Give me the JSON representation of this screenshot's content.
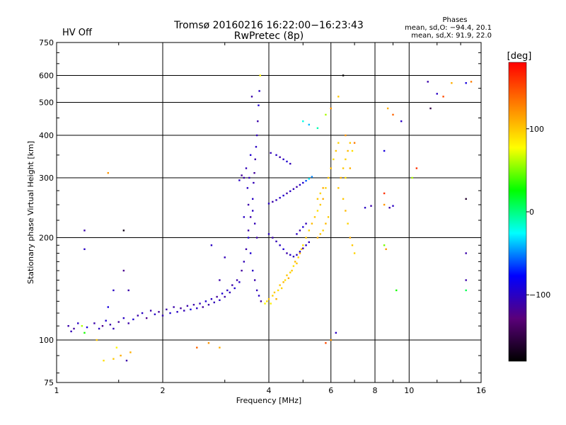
{
  "status": {
    "text": "HV Off",
    "color": "#cc0000"
  },
  "phases": {
    "heading": "Phases",
    "o_mode": "mean, sd,O: −94.4, 20.1",
    "x_mode": "mean, sd,X:  91.9, 22.0"
  },
  "colorbar": {
    "unit": "[deg]",
    "range": [
      -180,
      180
    ],
    "ticks": [
      {
        "value": 100,
        "label": "100"
      },
      {
        "value": 0,
        "label": "0"
      },
      {
        "value": -100,
        "label": "−100"
      }
    ],
    "stops": [
      "#000000",
      "#5a007a",
      "#0000ff",
      "#00ffff",
      "#00ff00",
      "#ffff00",
      "#ff8000",
      "#ff0000"
    ]
  },
  "chart_data": {
    "type": "scatter",
    "title": "Tromsø 20160216 16:22:00−16:23:43",
    "subtitle": "RwPretec (8p)",
    "xlabel": "Frequency [MHz]",
    "ylabel": "Stationary phase Virtual Height [km]",
    "xscale": "log",
    "yscale": "log",
    "xlim": [
      1,
      16
    ],
    "ylim": [
      75,
      750
    ],
    "grid": true,
    "xticks": [
      {
        "value": 1,
        "label": "1"
      },
      {
        "value": 2,
        "label": "2"
      },
      {
        "value": 4,
        "label": "4"
      },
      {
        "value": 6,
        "label": "6"
      },
      {
        "value": 8,
        "label": "8"
      },
      {
        "value": 10,
        "label": "10"
      },
      {
        "value": 16,
        "label": "16"
      }
    ],
    "yticks": [
      {
        "value": 75,
        "label": "75"
      },
      {
        "value": 100,
        "label": "100"
      },
      {
        "value": 200,
        "label": "200"
      },
      {
        "value": 300,
        "label": "300"
      },
      {
        "value": 400,
        "label": "400"
      },
      {
        "value": 500,
        "label": "500"
      },
      {
        "value": 600,
        "label": "600"
      },
      {
        "value": 750,
        "label": "750"
      }
    ],
    "points": [
      [
        1.08,
        110,
        -110
      ],
      [
        1.1,
        106,
        -105
      ],
      [
        1.12,
        108,
        -115
      ],
      [
        1.15,
        112,
        -100
      ],
      [
        1.18,
        110,
        60
      ],
      [
        1.2,
        105,
        30
      ],
      [
        1.22,
        109,
        -90
      ],
      [
        1.28,
        112,
        -110
      ],
      [
        1.32,
        108,
        -100
      ],
      [
        1.35,
        110,
        -120
      ],
      [
        1.38,
        114,
        -95
      ],
      [
        1.42,
        111,
        -110
      ],
      [
        1.45,
        108,
        -105
      ],
      [
        1.5,
        113,
        -115
      ],
      [
        1.55,
        116,
        -100
      ],
      [
        1.6,
        112,
        -110
      ],
      [
        1.65,
        115,
        -95
      ],
      [
        1.7,
        118,
        -110
      ],
      [
        1.75,
        120,
        -100
      ],
      [
        1.8,
        116,
        -120
      ],
      [
        1.85,
        122,
        -110
      ],
      [
        1.9,
        119,
        -100
      ],
      [
        1.95,
        121,
        -115
      ],
      [
        2.0,
        118,
        -105
      ],
      [
        2.05,
        123,
        -110
      ],
      [
        2.1,
        120,
        -95
      ],
      [
        2.15,
        125,
        -110
      ],
      [
        2.2,
        121,
        -100
      ],
      [
        2.25,
        124,
        -115
      ],
      [
        2.3,
        122,
        -105
      ],
      [
        2.35,
        126,
        -110
      ],
      [
        2.4,
        123,
        -90
      ],
      [
        2.45,
        127,
        -110
      ],
      [
        2.5,
        124,
        -100
      ],
      [
        2.55,
        128,
        -105
      ],
      [
        2.6,
        125,
        -115
      ],
      [
        2.65,
        130,
        -95
      ],
      [
        2.7,
        127,
        -110
      ],
      [
        2.75,
        132,
        -100
      ],
      [
        2.8,
        129,
        -105
      ],
      [
        2.85,
        134,
        -115
      ],
      [
        2.9,
        131,
        -100
      ],
      [
        2.95,
        137,
        -95
      ],
      [
        3.0,
        134,
        -110
      ],
      [
        3.05,
        140,
        -100
      ],
      [
        3.1,
        138,
        -105
      ],
      [
        3.15,
        145,
        -110
      ],
      [
        3.2,
        142,
        -95
      ],
      [
        3.25,
        150,
        -110
      ],
      [
        3.3,
        148,
        -100
      ],
      [
        3.35,
        160,
        -115
      ],
      [
        3.4,
        170,
        -105
      ],
      [
        3.45,
        185,
        -110
      ],
      [
        3.5,
        200,
        -95
      ],
      [
        3.55,
        230,
        -110
      ],
      [
        3.6,
        260,
        -100
      ],
      [
        3.62,
        290,
        -105
      ],
      [
        3.64,
        310,
        -115
      ],
      [
        3.66,
        340,
        -110
      ],
      [
        3.68,
        370,
        -100
      ],
      [
        3.7,
        400,
        -105
      ],
      [
        3.72,
        440,
        -110
      ],
      [
        3.74,
        490,
        -95
      ],
      [
        3.76,
        540,
        -100
      ],
      [
        3.78,
        600,
        80
      ],
      [
        3.58,
        520,
        -110
      ],
      [
        3.52,
        300,
        -105
      ],
      [
        3.48,
        280,
        -100
      ],
      [
        3.55,
        350,
        -95
      ],
      [
        3.4,
        300,
        -110
      ],
      [
        3.45,
        320,
        -105
      ],
      [
        3.3,
        295,
        -100
      ],
      [
        3.35,
        305,
        -115
      ],
      [
        3.5,
        250,
        -110
      ],
      [
        3.6,
        240,
        -100
      ],
      [
        3.65,
        220,
        -105
      ],
      [
        3.7,
        200,
        -110
      ],
      [
        3.55,
        180,
        -95
      ],
      [
        3.6,
        160,
        -100
      ],
      [
        3.65,
        150,
        -110
      ],
      [
        3.7,
        140,
        -105
      ],
      [
        3.75,
        135,
        -100
      ],
      [
        3.8,
        130,
        -115
      ],
      [
        3.5,
        210,
        -110
      ],
      [
        3.4,
        230,
        -100
      ],
      [
        3.9,
        128,
        80
      ],
      [
        3.95,
        130,
        90
      ],
      [
        4.0,
        132,
        100
      ],
      [
        4.05,
        128,
        85
      ],
      [
        4.1,
        135,
        95
      ],
      [
        4.15,
        138,
        100
      ],
      [
        4.2,
        132,
        110
      ],
      [
        4.25,
        140,
        90
      ],
      [
        4.3,
        145,
        100
      ],
      [
        4.35,
        142,
        95
      ],
      [
        4.4,
        148,
        105
      ],
      [
        4.45,
        150,
        90
      ],
      [
        4.5,
        155,
        100
      ],
      [
        4.55,
        152,
        110
      ],
      [
        4.6,
        158,
        95
      ],
      [
        4.65,
        160,
        100
      ],
      [
        4.7,
        165,
        90
      ],
      [
        4.75,
        170,
        105
      ],
      [
        4.8,
        168,
        100
      ],
      [
        4.85,
        175,
        95
      ],
      [
        4.9,
        180,
        110
      ],
      [
        4.95,
        185,
        100
      ],
      [
        5.0,
        190,
        90
      ],
      [
        5.1,
        200,
        100
      ],
      [
        5.2,
        210,
        95
      ],
      [
        5.3,
        220,
        105
      ],
      [
        5.4,
        230,
        100
      ],
      [
        5.5,
        240,
        90
      ],
      [
        5.6,
        250,
        100
      ],
      [
        5.7,
        260,
        110
      ],
      [
        5.8,
        280,
        95
      ],
      [
        5.9,
        300,
        100
      ],
      [
        6.0,
        320,
        105
      ],
      [
        6.1,
        340,
        90
      ],
      [
        6.2,
        360,
        100
      ],
      [
        6.3,
        380,
        95
      ],
      [
        4.0,
        252,
        -100
      ],
      [
        4.1,
        255,
        -110
      ],
      [
        4.2,
        258,
        -105
      ],
      [
        4.3,
        262,
        -100
      ],
      [
        4.4,
        266,
        -95
      ],
      [
        4.5,
        270,
        -110
      ],
      [
        4.6,
        274,
        -100
      ],
      [
        4.7,
        278,
        -105
      ],
      [
        4.8,
        282,
        -110
      ],
      [
        4.9,
        286,
        -100
      ],
      [
        5.0,
        290,
        -95
      ],
      [
        5.1,
        294,
        -60
      ],
      [
        5.2,
        298,
        -30
      ],
      [
        5.3,
        302,
        -50
      ],
      [
        4.05,
        355,
        -105
      ],
      [
        4.2,
        350,
        -100
      ],
      [
        4.3,
        345,
        -110
      ],
      [
        4.4,
        340,
        -100
      ],
      [
        4.5,
        335,
        -95
      ],
      [
        4.6,
        330,
        -105
      ],
      [
        4.0,
        205,
        -100
      ],
      [
        4.1,
        200,
        -110
      ],
      [
        4.2,
        195,
        -105
      ],
      [
        4.3,
        190,
        -100
      ],
      [
        4.4,
        185,
        -95
      ],
      [
        4.5,
        180,
        -110
      ],
      [
        4.6,
        178,
        -100
      ],
      [
        4.7,
        176,
        -105
      ],
      [
        4.8,
        178,
        -100
      ],
      [
        4.9,
        182,
        -95
      ],
      [
        5.0,
        186,
        -110
      ],
      [
        5.1,
        190,
        -100
      ],
      [
        5.2,
        194,
        -105
      ],
      [
        4.8,
        205,
        -100
      ],
      [
        4.9,
        210,
        -110
      ],
      [
        5.0,
        215,
        -95
      ],
      [
        5.1,
        220,
        -105
      ],
      [
        5.5,
        200,
        110
      ],
      [
        5.6,
        205,
        100
      ],
      [
        5.7,
        210,
        95
      ],
      [
        5.8,
        220,
        105
      ],
      [
        5.9,
        230,
        100
      ],
      [
        5.5,
        260,
        100
      ],
      [
        5.6,
        270,
        95
      ],
      [
        5.7,
        280,
        110
      ],
      [
        6.4,
        300,
        110
      ],
      [
        6.5,
        320,
        100
      ],
      [
        6.6,
        340,
        95
      ],
      [
        6.7,
        360,
        105
      ],
      [
        6.8,
        380,
        100
      ],
      [
        6.9,
        360,
        90
      ],
      [
        6.5,
        260,
        100
      ],
      [
        6.6,
        240,
        105
      ],
      [
        6.7,
        220,
        95
      ],
      [
        6.8,
        200,
        110
      ],
      [
        6.9,
        190,
        100
      ],
      [
        7.0,
        180,
        95
      ],
      [
        6.3,
        280,
        100
      ],
      [
        6.6,
        300,
        90
      ],
      [
        6.8,
        320,
        110
      ],
      [
        5.0,
        440,
        -20
      ],
      [
        5.2,
        430,
        -40
      ],
      [
        5.5,
        420,
        -10
      ],
      [
        5.8,
        460,
        60
      ],
      [
        6.0,
        480,
        120
      ],
      [
        6.3,
        520,
        100
      ],
      [
        6.6,
        400,
        120
      ],
      [
        7.0,
        380,
        130
      ],
      [
        7.5,
        245,
        -100
      ],
      [
        7.8,
        248,
        -110
      ],
      [
        8.5,
        270,
        160
      ],
      [
        8.5,
        250,
        120
      ],
      [
        8.8,
        245,
        -110
      ],
      [
        9.0,
        248,
        -100
      ],
      [
        8.5,
        190,
        50
      ],
      [
        8.6,
        185,
        120
      ],
      [
        8.5,
        360,
        -90
      ],
      [
        8.7,
        480,
        110
      ],
      [
        9.0,
        460,
        140
      ],
      [
        9.5,
        440,
        -100
      ],
      [
        10.2,
        300,
        60
      ],
      [
        10.5,
        320,
        160
      ],
      [
        11.3,
        575,
        -110
      ],
      [
        12.0,
        530,
        -100
      ],
      [
        12.5,
        520,
        150
      ],
      [
        13.2,
        570,
        110
      ],
      [
        14.5,
        570,
        -90
      ],
      [
        15.0,
        575,
        130
      ],
      [
        14.5,
        260,
        -160
      ],
      [
        14.5,
        180,
        -110
      ],
      [
        14.5,
        150,
        -110
      ],
      [
        14.5,
        140,
        10
      ],
      [
        11.5,
        480,
        -150
      ],
      [
        9.2,
        140,
        30
      ],
      [
        6.5,
        600,
        -180
      ],
      [
        6.2,
        105,
        -100
      ],
      [
        5.8,
        98,
        150
      ],
      [
        6.0,
        100,
        120
      ],
      [
        1.2,
        210,
        -110
      ],
      [
        1.2,
        185,
        -100
      ],
      [
        1.4,
        310,
        120
      ],
      [
        1.55,
        210,
        -170
      ],
      [
        1.55,
        160,
        -120
      ],
      [
        1.48,
        95,
        80
      ],
      [
        1.52,
        90,
        110
      ],
      [
        1.45,
        88,
        100
      ],
      [
        1.58,
        87,
        -110
      ],
      [
        1.62,
        92,
        110
      ],
      [
        1.36,
        87,
        90
      ],
      [
        2.5,
        95,
        140
      ],
      [
        2.7,
        98,
        120
      ],
      [
        2.9,
        95,
        110
      ],
      [
        1.45,
        140,
        -100
      ],
      [
        1.6,
        140,
        -110
      ],
      [
        1.3,
        100,
        100
      ],
      [
        1.4,
        125,
        -90
      ],
      [
        2.75,
        190,
        -100
      ],
      [
        2.9,
        150,
        -110
      ],
      [
        3.0,
        175,
        -105
      ]
    ]
  }
}
